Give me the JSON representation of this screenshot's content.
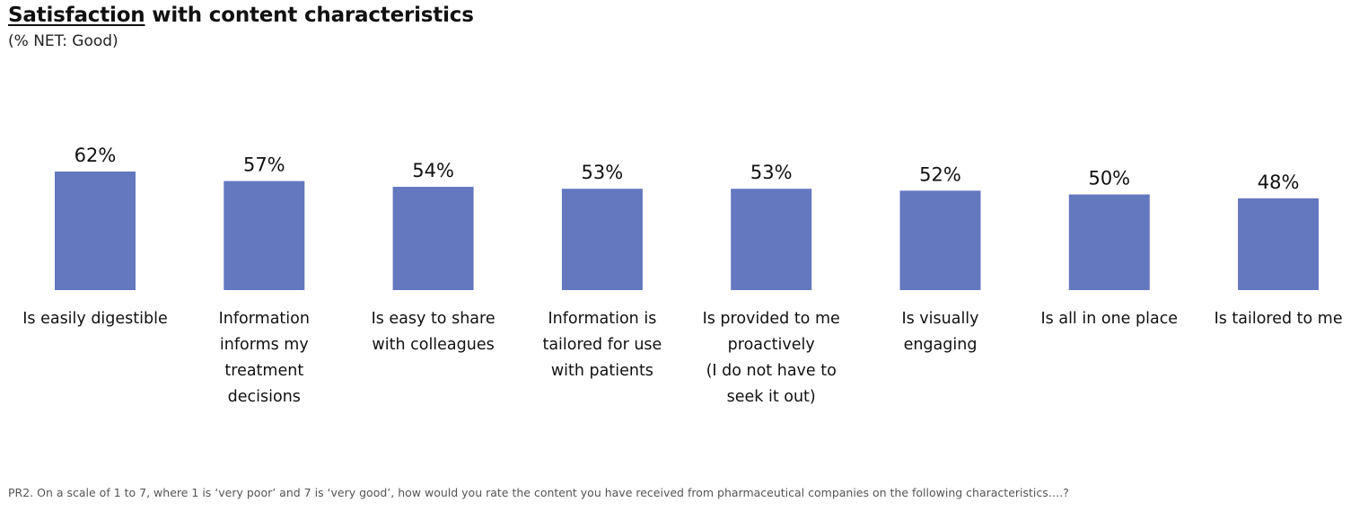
{
  "header": {
    "title_emphasis": "Satisfaction",
    "title_rest": " with content characteristics",
    "subtitle": "(% NET: Good)"
  },
  "footnote": "PR2. On a scale of 1 to 7, where 1 is ‘very poor’ and 7 is ‘very good’, how would you rate the content you have received from pharmaceutical companies on the following characteristics….?",
  "chart_data": {
    "type": "bar",
    "title": "Satisfaction with content characteristics",
    "subtitle": "(% NET: Good)",
    "categories": [
      [
        "Is easily digestible"
      ],
      [
        "Information",
        "informs my",
        "treatment",
        "decisions"
      ],
      [
        "Is easy to share",
        "with colleagues"
      ],
      [
        "Information is",
        "tailored for use",
        "with patients"
      ],
      [
        "Is provided to me",
        "proactively",
        "(I do not have to",
        "seek it out)"
      ],
      [
        "Is visually",
        "engaging"
      ],
      [
        "Is all in one place"
      ],
      [
        "Is tailored to me"
      ]
    ],
    "values": [
      62,
      57,
      54,
      53,
      53,
      52,
      50,
      48
    ],
    "value_labels": [
      "62%",
      "57%",
      "54%",
      "53%",
      "53%",
      "52%",
      "50%",
      "48%"
    ],
    "unit": "%",
    "ylim": [
      0,
      62
    ],
    "grid": false,
    "legend": "none",
    "bar_color": "#6478C0"
  }
}
